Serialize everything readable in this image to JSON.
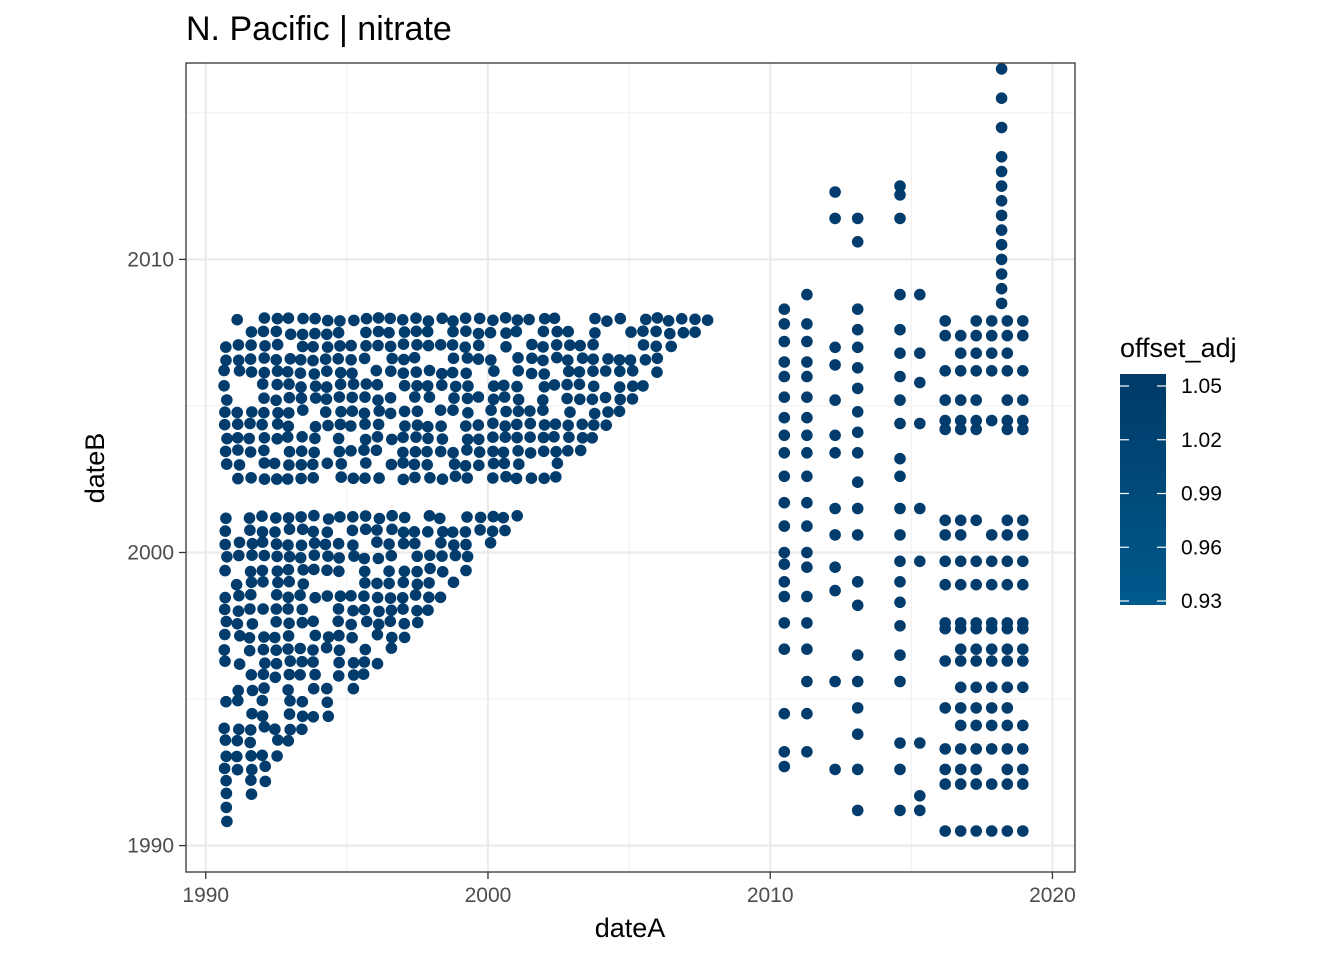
{
  "chart_data": {
    "type": "scatter",
    "title": "N. Pacific | nitrate",
    "xlabel": "dateA",
    "ylabel": "dateB",
    "xlim": [
      1989.3,
      2020.8
    ],
    "ylim": [
      1989.1,
      2016.7
    ],
    "x_ticks": [
      1990,
      2000,
      2010,
      2020
    ],
    "y_ticks": [
      1990,
      2000,
      2010
    ],
    "x_tick_labels": [
      "1990",
      "2000",
      "2010",
      "2020"
    ],
    "y_tick_labels": [
      "1990",
      "2000",
      "2010"
    ],
    "grid": true,
    "legend": {
      "title": "offset_adj",
      "placement": "right",
      "min": 0.93,
      "max": 1.05,
      "breaks": [
        0.93,
        0.96,
        0.99,
        1.02,
        1.05
      ],
      "break_labels": [
        "0.93",
        "0.96",
        "0.99",
        "1.02",
        "1.05"
      ],
      "color_low": "#005A8C",
      "color_high": "#003A68"
    },
    "point_color": "#013C6C",
    "point_clusters": [
      {
        "region": "triangle",
        "x_range": [
          1990.7,
          2008.7
        ],
        "y_range": [
          1990.4,
          2008.0
        ],
        "condition": "dateB >= dateA - 0.2",
        "step": 0.45,
        "density": 0.85
      },
      {
        "region": "column",
        "x": 2010.5,
        "y_values": [
          1992.7,
          1993.2,
          1994.5,
          1996.7,
          1997.6,
          1998.5,
          1999.0,
          1999.6,
          2000.0,
          2000.9,
          2001.7,
          2002.6,
          2003.4,
          2004.0,
          2004.6,
          2005.3,
          2006.0,
          2006.5,
          2007.2,
          2007.8,
          2008.3
        ]
      },
      {
        "region": "column",
        "x": 2011.3,
        "y_values": [
          1993.2,
          1994.5,
          1995.6,
          1996.7,
          1997.6,
          1998.5,
          1999.5,
          2000.0,
          2000.9,
          2001.7,
          2002.6,
          2003.4,
          2004.0,
          2004.6,
          2005.3,
          2006.0,
          2006.5,
          2007.2,
          2007.8,
          2008.8
        ]
      },
      {
        "region": "column",
        "x": 2012.3,
        "y_values": [
          1992.6,
          1995.6,
          1998.7,
          1999.5,
          2000.6,
          2001.5,
          2003.4,
          2004.0,
          2005.2,
          2006.4,
          2007.0,
          2011.4,
          2012.3
        ]
      },
      {
        "region": "column",
        "x": 2013.1,
        "y_values": [
          1991.2,
          1992.6,
          1993.8,
          1994.7,
          1995.6,
          1996.5,
          1998.2,
          1999.0,
          2000.6,
          2001.5,
          2002.4,
          2003.4,
          2004.1,
          2004.8,
          2005.6,
          2006.3,
          2007.0,
          2007.6,
          2008.3,
          2010.6,
          2011.4
        ]
      },
      {
        "region": "column",
        "x": 2014.6,
        "y_values": [
          1991.2,
          1992.6,
          1993.5,
          1995.6,
          1996.5,
          1997.5,
          1998.3,
          1999.0,
          1999.7,
          2000.6,
          2001.5,
          2002.6,
          2003.2,
          2004.4,
          2005.2,
          2006.0,
          2006.8,
          2007.6,
          2008.8,
          2011.4,
          2012.2,
          2012.5
        ]
      },
      {
        "region": "column",
        "x": 2015.3,
        "y_values": [
          1991.2,
          1991.7,
          1993.5,
          1999.7,
          2001.5,
          2004.4,
          2005.8,
          2006.8,
          2008.8
        ]
      },
      {
        "region": "block",
        "x_range": [
          2016.2,
          2019.4
        ],
        "x_step": 0.55,
        "y_values": [
          1990.5,
          1992.1,
          1992.6,
          1993.3,
          1994.1,
          1994.7,
          1995.4,
          1996.3,
          1996.7,
          1997.4,
          1997.6,
          1998.9,
          1999.7,
          2000.6,
          2001.1,
          2004.2,
          2004.5,
          2005.2,
          2006.2,
          2006.8,
          2007.4,
          2007.9
        ]
      },
      {
        "region": "column",
        "x": 2018.2,
        "y_values": [
          2008.5,
          2009.0,
          2009.5,
          2010.0,
          2010.5,
          2011.0,
          2011.5,
          2012.0,
          2012.5,
          2013.0,
          2013.5,
          2014.5,
          2015.5,
          2016.5
        ]
      }
    ]
  }
}
